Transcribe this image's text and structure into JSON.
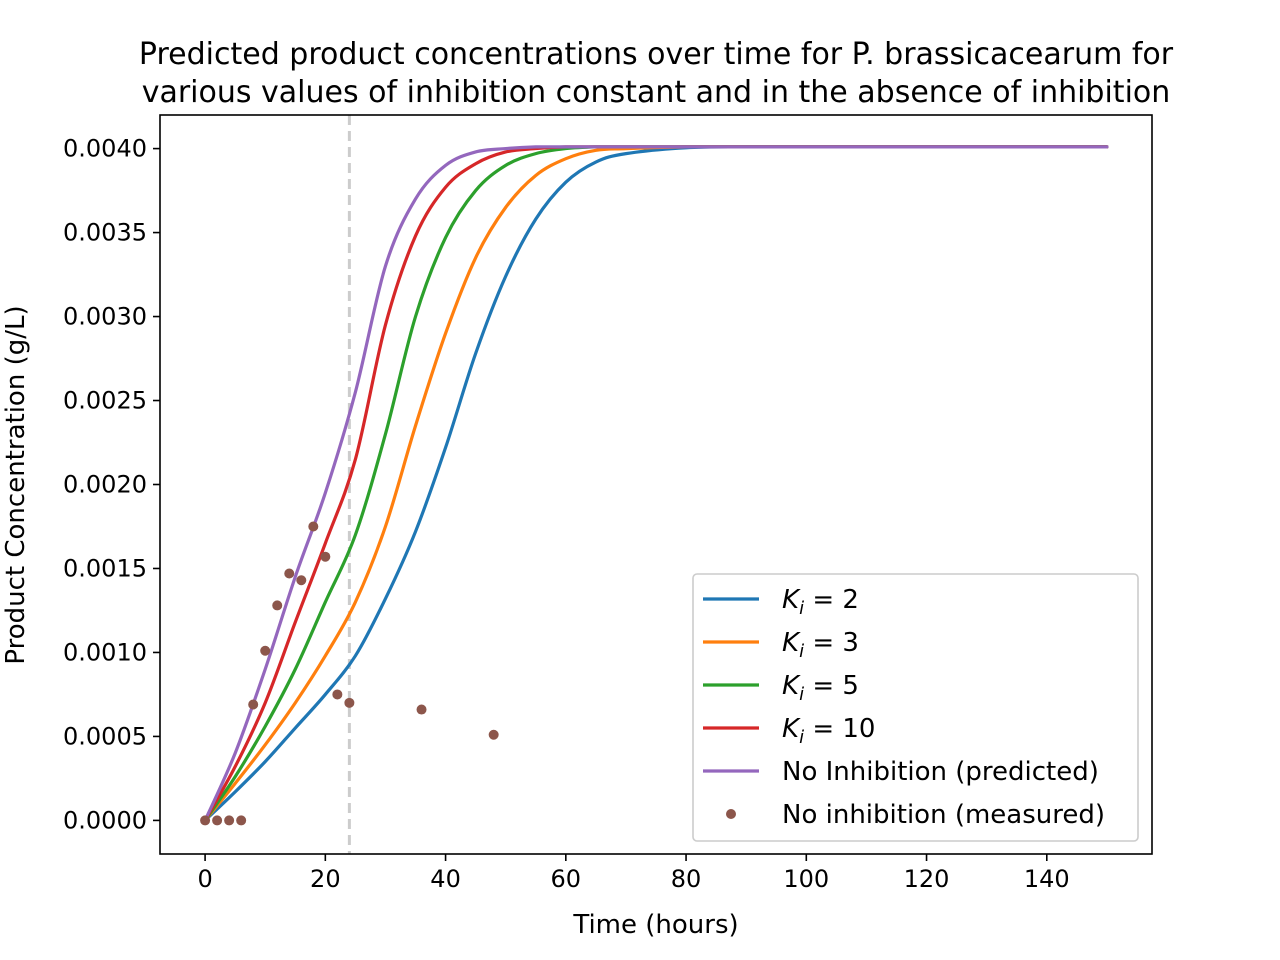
{
  "chart_data": {
    "type": "line",
    "title_line1": "Predicted product concentrations over time for P. brassicacearum for",
    "title_line2": "various values of inhibition constant and in the absence of inhibition",
    "xlabel": "Time (hours)",
    "ylabel": "Product Concentration (g/L)",
    "xlim": [
      -7.5,
      157.5
    ],
    "ylim": [
      -0.0002,
      0.0042
    ],
    "xticks": [
      0,
      20,
      40,
      60,
      80,
      100,
      120,
      140
    ],
    "yticks": [
      0.0,
      0.0005,
      0.001,
      0.0015,
      0.002,
      0.0025,
      0.003,
      0.0035,
      0.004
    ],
    "ytick_labels": [
      "0.0000",
      "0.0005",
      "0.0010",
      "0.0015",
      "0.0020",
      "0.0025",
      "0.0030",
      "0.0035",
      "0.0040"
    ],
    "vline": {
      "x": 24,
      "style": "dashed",
      "color": "#cccccc"
    },
    "grid": false,
    "legend_position": "lower-right",
    "series": [
      {
        "name": "K_i = 2",
        "legend_main": "K",
        "legend_sub": "i",
        "legend_rest": " = 2",
        "color": "#1f77b4",
        "x": [
          0,
          5,
          10,
          15,
          20,
          25,
          30,
          35,
          40,
          45,
          50,
          55,
          60,
          65,
          70,
          80,
          90,
          100,
          120,
          150
        ],
        "y": [
          0.0,
          0.00017,
          0.00035,
          0.00055,
          0.00075,
          0.00098,
          0.00132,
          0.00172,
          0.00222,
          0.00278,
          0.00324,
          0.00358,
          0.0038,
          0.00392,
          0.00397,
          0.004005,
          0.00401,
          0.00401,
          0.00401,
          0.00401
        ]
      },
      {
        "name": "K_i = 3",
        "legend_main": "K",
        "legend_sub": "i",
        "legend_rest": " = 3",
        "color": "#ff7f0e",
        "x": [
          0,
          5,
          10,
          15,
          20,
          25,
          30,
          35,
          40,
          45,
          50,
          55,
          60,
          65,
          70,
          80,
          90,
          100,
          120,
          150
        ],
        "y": [
          0.0,
          0.00022,
          0.00045,
          0.0007,
          0.00098,
          0.0013,
          0.00175,
          0.00235,
          0.0029,
          0.00335,
          0.00365,
          0.00384,
          0.00394,
          0.00399,
          0.004,
          0.00401,
          0.00401,
          0.00401,
          0.00401,
          0.00401
        ]
      },
      {
        "name": "K_i = 5",
        "legend_main": "K",
        "legend_sub": "i",
        "legend_rest": " = 5",
        "color": "#2ca02c",
        "x": [
          0,
          5,
          10,
          15,
          20,
          25,
          30,
          35,
          40,
          45,
          50,
          55,
          60,
          65,
          70,
          80,
          90,
          100,
          120,
          150
        ],
        "y": [
          0.0,
          0.00026,
          0.00056,
          0.0009,
          0.0013,
          0.0017,
          0.0023,
          0.003,
          0.00347,
          0.00375,
          0.0039,
          0.00397,
          0.004,
          0.00401,
          0.00401,
          0.00401,
          0.00401,
          0.00401,
          0.00401,
          0.00401
        ]
      },
      {
        "name": "K_i = 10",
        "legend_main": "K",
        "legend_sub": "i",
        "legend_rest": " = 10",
        "color": "#d62728",
        "x": [
          0,
          5,
          10,
          15,
          20,
          25,
          30,
          35,
          40,
          45,
          50,
          55,
          60,
          65,
          70,
          80,
          90,
          100,
          120,
          150
        ],
        "y": [
          0.0,
          0.00032,
          0.0007,
          0.00118,
          0.00165,
          0.00215,
          0.00295,
          0.00348,
          0.00377,
          0.00391,
          0.00398,
          0.004,
          0.00401,
          0.00401,
          0.00401,
          0.00401,
          0.00401,
          0.00401,
          0.00401,
          0.00401
        ]
      },
      {
        "name": "No Inhibition (predicted)",
        "legend_main": "No Inhibition (predicted)",
        "legend_sub": "",
        "legend_rest": "",
        "color": "#9467bd",
        "x": [
          0,
          5,
          10,
          15,
          20,
          25,
          30,
          35,
          40,
          45,
          50,
          55,
          60,
          65,
          70,
          80,
          90,
          100,
          120,
          150
        ],
        "y": [
          0.0,
          0.0004,
          0.0009,
          0.00145,
          0.00195,
          0.00255,
          0.0033,
          0.0037,
          0.0039,
          0.00398,
          0.004,
          0.00401,
          0.00401,
          0.00401,
          0.00401,
          0.00401,
          0.00401,
          0.00401,
          0.00401,
          0.00401
        ]
      }
    ],
    "scatter": {
      "name": "No inhibition (measured)",
      "color": "#8c564b",
      "points": [
        {
          "x": 0,
          "y": 0.0
        },
        {
          "x": 2,
          "y": 0.0
        },
        {
          "x": 4,
          "y": 0.0
        },
        {
          "x": 6,
          "y": 0.0
        },
        {
          "x": 8,
          "y": 0.00069
        },
        {
          "x": 10,
          "y": 0.00101
        },
        {
          "x": 12,
          "y": 0.00128
        },
        {
          "x": 14,
          "y": 0.00147
        },
        {
          "x": 16,
          "y": 0.00143
        },
        {
          "x": 18,
          "y": 0.00175
        },
        {
          "x": 20,
          "y": 0.00157
        },
        {
          "x": 22,
          "y": 0.00075
        },
        {
          "x": 24,
          "y": 0.0007
        },
        {
          "x": 36,
          "y": 0.00066
        },
        {
          "x": 48,
          "y": 0.00051
        }
      ]
    }
  }
}
